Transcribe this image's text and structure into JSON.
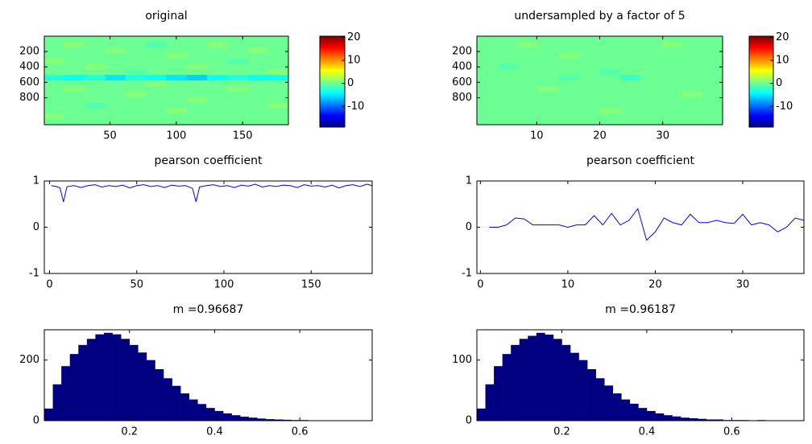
{
  "chart_data": [
    {
      "type": "heatmap",
      "title": "original",
      "xlim": [
        0.5,
        184.5
      ],
      "xticks": [
        50,
        100,
        150
      ],
      "ylim": [
        1150,
        1
      ],
      "yticks": [
        200,
        400,
        600,
        800
      ],
      "clim": [
        -19,
        20.5
      ],
      "cticks": [
        -10,
        0,
        10,
        20
      ],
      "colormap": "jet",
      "values": [
        [
          0,
          0,
          0,
          0,
          0,
          0,
          0,
          0,
          0,
          0,
          0,
          0
        ],
        [
          0,
          1,
          0,
          0,
          0,
          -1,
          0,
          0,
          1,
          0,
          0,
          0
        ],
        [
          0,
          0,
          0,
          1,
          0,
          0,
          0,
          0,
          0,
          0,
          1,
          0
        ],
        [
          0,
          0,
          0,
          0,
          0,
          0,
          1,
          0,
          0,
          0,
          0,
          0
        ],
        [
          1,
          0,
          0,
          0,
          0,
          0,
          0,
          0,
          0,
          -1,
          0,
          0
        ],
        [
          0,
          0,
          1,
          0,
          0,
          0,
          0,
          1,
          0,
          0,
          0,
          0
        ],
        [
          0,
          0,
          0,
          0,
          -1,
          0,
          0,
          0,
          0,
          0,
          0,
          1
        ],
        [
          -3,
          -4,
          -3,
          -5,
          -3,
          -4,
          -5,
          -6,
          -4,
          -3,
          -4,
          -4
        ],
        [
          0,
          0,
          0,
          0,
          0,
          1,
          0,
          0,
          0,
          0,
          0,
          0
        ],
        [
          0,
          1,
          0,
          0,
          0,
          0,
          0,
          0,
          0,
          1,
          0,
          0
        ],
        [
          0,
          0,
          0,
          0,
          1,
          0,
          0,
          0,
          0,
          0,
          0,
          0
        ],
        [
          0,
          0,
          0,
          0,
          0,
          0,
          0,
          1,
          0,
          0,
          0,
          0
        ],
        [
          0,
          0,
          -1,
          0,
          0,
          0,
          0,
          0,
          0,
          0,
          0,
          1
        ],
        [
          0,
          0,
          0,
          0,
          0,
          0,
          1,
          0,
          0,
          0,
          0,
          0
        ],
        [
          1,
          0,
          0,
          0,
          0,
          0,
          0,
          0,
          0,
          0,
          0,
          0
        ],
        [
          0,
          0,
          0,
          0,
          0,
          0,
          0,
          0,
          0,
          0,
          0,
          0
        ]
      ]
    },
    {
      "type": "heatmap",
      "title": "undersampled by a factor of 5",
      "xlim": [
        0.5,
        39.5
      ],
      "xticks": [
        10,
        20,
        30
      ],
      "ylim": [
        1150,
        1
      ],
      "yticks": [
        200,
        400,
        600,
        800
      ],
      "clim": [
        -19,
        20.5
      ],
      "cticks": [
        -10,
        0,
        10,
        20
      ],
      "colormap": "jet",
      "values": [
        [
          0,
          0,
          0,
          0,
          0,
          0,
          0,
          0,
          0,
          0,
          0,
          0
        ],
        [
          0,
          0,
          1,
          0,
          0,
          0,
          0,
          0,
          0,
          1,
          0,
          0
        ],
        [
          0,
          0,
          0,
          0,
          0,
          0,
          0,
          0,
          0,
          0,
          0,
          0
        ],
        [
          0,
          0,
          0,
          0,
          1,
          0,
          0,
          0,
          0,
          0,
          0,
          0
        ],
        [
          0,
          0,
          0,
          0,
          0,
          0,
          0,
          0,
          0,
          0,
          0,
          0
        ],
        [
          0,
          -1,
          0,
          0,
          0,
          0,
          0,
          0,
          0,
          0,
          0,
          0
        ],
        [
          0,
          0,
          0,
          0,
          0,
          0,
          -1,
          0,
          0,
          0,
          0,
          0
        ],
        [
          0,
          0,
          0,
          0,
          -1,
          0,
          0,
          -2,
          0,
          0,
          0,
          0
        ],
        [
          0,
          0,
          0,
          0,
          0,
          0,
          0,
          0,
          0,
          0,
          0,
          0
        ],
        [
          0,
          0,
          0,
          1,
          0,
          0,
          0,
          0,
          0,
          0,
          0,
          0
        ],
        [
          0,
          0,
          0,
          0,
          0,
          0,
          0,
          0,
          0,
          0,
          1,
          0
        ],
        [
          0,
          0,
          0,
          0,
          0,
          0,
          0,
          0,
          0,
          0,
          0,
          0
        ],
        [
          0,
          0,
          0,
          0,
          0,
          0,
          0,
          0,
          0,
          0,
          0,
          0
        ],
        [
          0,
          0,
          0,
          0,
          0,
          0,
          1,
          0,
          0,
          0,
          0,
          0
        ],
        [
          0,
          0,
          0,
          0,
          0,
          0,
          0,
          0,
          0,
          0,
          0,
          0
        ],
        [
          0,
          0,
          0,
          0,
          0,
          0,
          0,
          0,
          0,
          0,
          0,
          0
        ]
      ]
    },
    {
      "type": "line",
      "title": "pearson coefficient",
      "color": "#0000ff",
      "xlim": [
        -3,
        185
      ],
      "xticks": [
        0,
        50,
        100,
        150
      ],
      "ylim": [
        -1,
        1
      ],
      "yticks": [
        -1,
        0,
        1
      ],
      "x": [
        1,
        4,
        6,
        8,
        10,
        14,
        18,
        22,
        26,
        30,
        34,
        38,
        42,
        46,
        50,
        54,
        58,
        62,
        66,
        70,
        74,
        78,
        82,
        84,
        86,
        90,
        94,
        98,
        102,
        106,
        110,
        114,
        118,
        122,
        126,
        130,
        134,
        138,
        142,
        146,
        150,
        154,
        158,
        162,
        166,
        170,
        174,
        178,
        182,
        185
      ],
      "values": [
        0.9,
        0.88,
        0.85,
        0.55,
        0.88,
        0.9,
        0.86,
        0.9,
        0.92,
        0.87,
        0.9,
        0.88,
        0.91,
        0.85,
        0.9,
        0.92,
        0.88,
        0.9,
        0.86,
        0.91,
        0.89,
        0.9,
        0.84,
        0.55,
        0.87,
        0.9,
        0.92,
        0.88,
        0.9,
        0.86,
        0.91,
        0.89,
        0.93,
        0.87,
        0.9,
        0.88,
        0.91,
        0.9,
        0.86,
        0.92,
        0.89,
        0.9,
        0.87,
        0.91,
        0.85,
        0.9,
        0.92,
        0.88,
        0.93,
        0.9
      ]
    },
    {
      "type": "line",
      "title": "pearson coefficient",
      "color": "#0000ff",
      "xlim": [
        -0.4,
        37
      ],
      "xticks": [
        0,
        10,
        20,
        30
      ],
      "ylim": [
        -1,
        1
      ],
      "yticks": [
        -1,
        0,
        1
      ],
      "x": [
        1,
        2,
        3,
        4,
        5,
        6,
        7,
        8,
        9,
        10,
        11,
        12,
        13,
        14,
        15,
        16,
        17,
        18,
        19,
        20,
        21,
        22,
        23,
        24,
        25,
        26,
        27,
        28,
        29,
        30,
        31,
        32,
        33,
        34,
        35,
        36,
        37
      ],
      "values": [
        0,
        0,
        0.05,
        0.2,
        0.18,
        0.05,
        0.05,
        0.05,
        0.05,
        0,
        0.05,
        0.05,
        0.25,
        0.05,
        0.3,
        0.05,
        0.15,
        0.4,
        -0.28,
        -0.1,
        0.2,
        0.1,
        0.05,
        0.28,
        0.1,
        0.1,
        0.15,
        0.1,
        0.08,
        0.28,
        0.05,
        0.1,
        0.05,
        -0.1,
        0,
        0.2,
        0.15
      ]
    },
    {
      "type": "histogram",
      "title": "m =0.96687",
      "color": "#000080",
      "xlim": [
        0,
        0.77
      ],
      "xticks": [
        0.2,
        0.4,
        0.6
      ],
      "ylim": [
        0,
        300
      ],
      "yticks": [
        0,
        200
      ],
      "bins": [
        0,
        0.02,
        0.04,
        0.06,
        0.08,
        0.1,
        0.12,
        0.14,
        0.16,
        0.18,
        0.2,
        0.22,
        0.24,
        0.26,
        0.28,
        0.3,
        0.32,
        0.34,
        0.36,
        0.38,
        0.4,
        0.42,
        0.44,
        0.46,
        0.48,
        0.5,
        0.52,
        0.54,
        0.56,
        0.58,
        0.6,
        0.62,
        0.64,
        0.66,
        0.68,
        0.7,
        0.72,
        0.74,
        0.76
      ],
      "counts": [
        40,
        120,
        180,
        220,
        250,
        270,
        285,
        290,
        285,
        270,
        250,
        225,
        200,
        170,
        140,
        115,
        90,
        70,
        55,
        42,
        32,
        24,
        18,
        13,
        10,
        7,
        5,
        4,
        3,
        2,
        2,
        1,
        1,
        1,
        0,
        0,
        0,
        0
      ]
    },
    {
      "type": "histogram",
      "title": "m =0.96187",
      "color": "#000080",
      "xlim": [
        0,
        0.77
      ],
      "xticks": [
        0.2,
        0.4,
        0.6
      ],
      "ylim": [
        0,
        150
      ],
      "yticks": [
        0,
        100
      ],
      "bins": [
        0,
        0.02,
        0.04,
        0.06,
        0.08,
        0.1,
        0.12,
        0.14,
        0.16,
        0.18,
        0.2,
        0.22,
        0.24,
        0.26,
        0.28,
        0.3,
        0.32,
        0.34,
        0.36,
        0.38,
        0.4,
        0.42,
        0.44,
        0.46,
        0.48,
        0.5,
        0.52,
        0.54,
        0.56,
        0.58,
        0.6,
        0.62,
        0.64,
        0.66,
        0.68,
        0.7,
        0.72,
        0.74,
        0.76
      ],
      "counts": [
        20,
        60,
        90,
        110,
        125,
        135,
        140,
        145,
        142,
        135,
        125,
        112,
        100,
        85,
        70,
        58,
        45,
        35,
        28,
        21,
        16,
        12,
        9,
        7,
        5,
        4,
        3,
        2,
        2,
        1,
        1,
        1,
        0,
        1,
        0,
        0,
        0,
        0
      ]
    }
  ]
}
